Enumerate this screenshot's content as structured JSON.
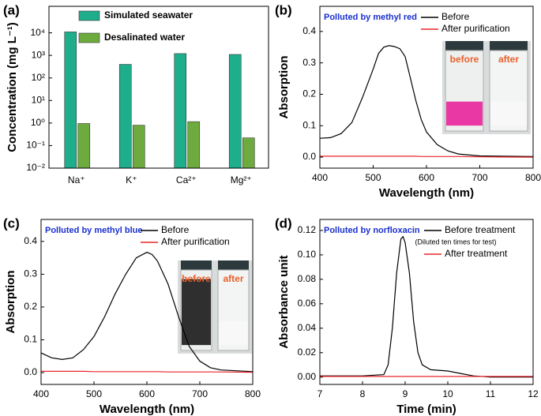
{
  "chart_data": [
    {
      "type": "bar",
      "label": "(a)",
      "ylabel": "Concentration (mg L⁻¹)",
      "log_y": true,
      "categories": [
        "Na⁺",
        "K⁺",
        "Ca²⁺",
        "Mg²⁺"
      ],
      "series": [
        {
          "name": "Simulated seawater",
          "color": "#1fae8c",
          "values": [
            11000,
            400,
            1200,
            1100
          ]
        },
        {
          "name": "Desalinated water",
          "color": "#6eab3f",
          "values": [
            0.95,
            0.8,
            1.15,
            0.22
          ]
        }
      ],
      "ylim": [
        0.01,
        150000
      ],
      "yticks": [
        {
          "value": 0.01,
          "label": "10⁻²"
        },
        {
          "value": 0.1,
          "label": "10⁻¹"
        },
        {
          "value": 1,
          "label": "10⁰"
        },
        {
          "value": 10,
          "label": "10¹"
        },
        {
          "value": 100,
          "label": "10²"
        },
        {
          "value": 1000,
          "label": "10³"
        },
        {
          "value": 10000,
          "label": "10⁴"
        }
      ],
      "legend": "upper center"
    },
    {
      "type": "line",
      "label": "(b)",
      "title": "Polluted by methyl red",
      "xlabel": "Wavelength (nm)",
      "ylabel": "Absorption",
      "x": [
        400,
        420,
        440,
        460,
        480,
        500,
        510,
        520,
        530,
        540,
        550,
        560,
        570,
        580,
        590,
        600,
        620,
        640,
        660,
        700,
        800
      ],
      "series": [
        {
          "name": "Before",
          "color": "#000000",
          "values": [
            0.06,
            0.062,
            0.075,
            0.11,
            0.19,
            0.28,
            0.33,
            0.35,
            0.355,
            0.352,
            0.345,
            0.32,
            0.25,
            0.18,
            0.12,
            0.08,
            0.04,
            0.02,
            0.01,
            0.004,
            0.002
          ]
        },
        {
          "name": "After purification",
          "color": "#e8262b",
          "values": [
            0.003,
            0.003,
            0.003,
            0.003,
            0.003,
            0.003,
            0.003,
            0.003,
            0.003,
            0.003,
            0.003,
            0.003,
            0.003,
            0.003,
            0.002,
            0.002,
            0.002,
            0.002,
            0.002,
            0.001,
            0.0
          ]
        }
      ],
      "xlim": [
        400,
        800
      ],
      "xticks": [
        400,
        500,
        600,
        700,
        800
      ],
      "ylim": [
        -0.035,
        0.48
      ],
      "yticks": [
        {
          "value": 0,
          "label": "0.0"
        },
        0.1,
        0.2,
        0.3,
        0.4
      ],
      "legend": "upper right",
      "inset_labels": [
        "before",
        "after"
      ],
      "inset_color": "#e8229a"
    },
    {
      "type": "line",
      "label": "(c)",
      "title": "Polluted by methyl blue",
      "xlabel": "Wavelength (nm)",
      "ylabel": "Absorption",
      "x": [
        400,
        420,
        440,
        460,
        480,
        500,
        520,
        540,
        560,
        580,
        600,
        610,
        620,
        640,
        660,
        680,
        700,
        720,
        740,
        800
      ],
      "series": [
        {
          "name": "Before",
          "color": "#000000",
          "values": [
            0.06,
            0.045,
            0.04,
            0.045,
            0.07,
            0.11,
            0.17,
            0.24,
            0.3,
            0.35,
            0.367,
            0.36,
            0.34,
            0.27,
            0.17,
            0.08,
            0.035,
            0.015,
            0.008,
            0.003
          ]
        },
        {
          "name": "After purification",
          "color": "#e8262b",
          "values": [
            0.004,
            0.004,
            0.004,
            0.004,
            0.004,
            0.003,
            0.003,
            0.003,
            0.003,
            0.003,
            0.003,
            0.003,
            0.003,
            0.002,
            0.002,
            0.002,
            0.002,
            0.002,
            0.002,
            0.001
          ]
        }
      ],
      "xlim": [
        400,
        800
      ],
      "xticks": [
        400,
        500,
        600,
        700,
        800
      ],
      "ylim": [
        -0.036,
        0.467
      ],
      "yticks": [
        {
          "value": 0,
          "label": "0.0"
        },
        0.1,
        0.2,
        0.3,
        0.4
      ],
      "legend": "upper right",
      "inset_labels": [
        "before",
        "after"
      ],
      "inset_color": "#1a1a1a"
    },
    {
      "type": "line",
      "label": "(d)",
      "title": "Polluted by norfloxacin",
      "xlabel": "Time (min)",
      "ylabel": "Absorbance unit",
      "note": "(Diluted ten times for test)",
      "x": [
        7,
        8,
        8.5,
        8.6,
        8.7,
        8.8,
        8.9,
        8.95,
        9.0,
        9.1,
        9.2,
        9.3,
        9.4,
        9.6,
        10,
        10.3,
        10.6,
        11,
        12
      ],
      "series": [
        {
          "name": "Before treatment",
          "color": "#000000",
          "values": [
            0.001,
            0.001,
            0.002,
            0.01,
            0.04,
            0.085,
            0.113,
            0.115,
            0.11,
            0.085,
            0.045,
            0.02,
            0.01,
            0.006,
            0.005,
            0.003,
            0.001,
            0,
            0
          ]
        },
        {
          "name": "After treatment",
          "color": "#e8262b",
          "values": [
            0.0005,
            0.0005,
            0.0005,
            0.0005,
            0.0005,
            0.0005,
            0.0005,
            0.0005,
            0.0005,
            0.0005,
            0.0005,
            0.0005,
            0.0005,
            0.0005,
            0.0005,
            0.0005,
            0.0005,
            0.0005,
            0.0005
          ]
        }
      ],
      "xlim": [
        7,
        12
      ],
      "xticks": [
        7,
        8,
        9,
        10,
        11,
        12
      ],
      "ylim": [
        -0.006,
        0.129
      ],
      "yticks": [
        {
          "value": 0,
          "label": "0.00"
        },
        {
          "value": 0.02,
          "label": "0.02"
        },
        {
          "value": 0.04,
          "label": "0.04"
        },
        {
          "value": 0.06,
          "label": "0.06"
        },
        {
          "value": 0.08,
          "label": "0.08"
        },
        {
          "value": 0.1,
          "label": "0.10"
        },
        {
          "value": 0.12,
          "label": "0.12"
        }
      ],
      "legend": "upper right"
    }
  ]
}
